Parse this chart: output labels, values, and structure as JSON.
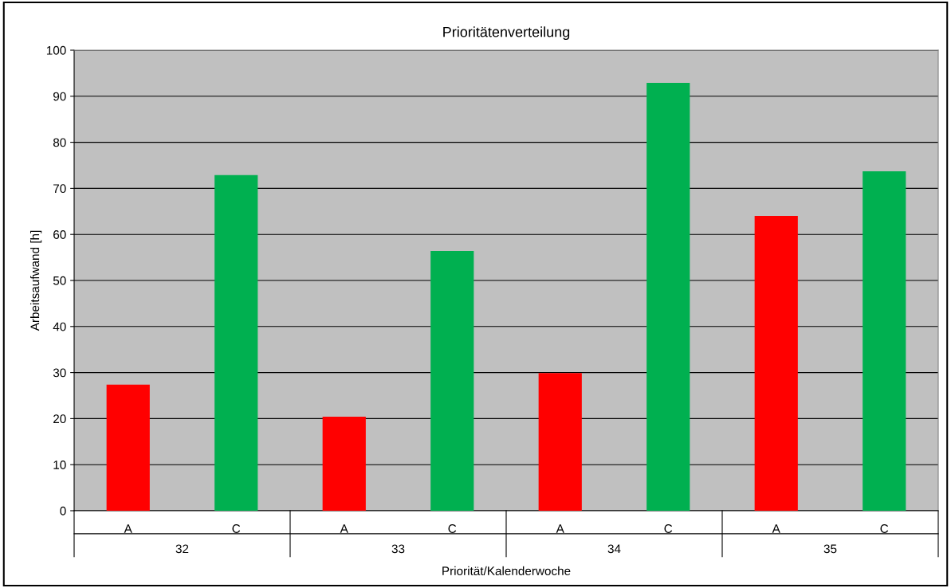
{
  "chart_data": {
    "type": "bar",
    "title": "Prioritätenverteilung",
    "xlabel": "Priorität/Kalenderwoche",
    "ylabel": "Arbeitsaufwand [h]",
    "categories": [
      "A",
      "C",
      "A",
      "C",
      "A",
      "C",
      "A",
      "C"
    ],
    "values": [
      27.4,
      72.9,
      20.4,
      56.4,
      29.9,
      92.9,
      64.0,
      73.7
    ],
    "colors": [
      "#ff0000",
      "#00b050",
      "#ff0000",
      "#00b050",
      "#ff0000",
      "#00b050",
      "#ff0000",
      "#00b050"
    ],
    "annotations": [
      "32",
      "33",
      "34",
      "35"
    ],
    "ylim": [
      0,
      100
    ],
    "yticks": [
      0,
      10,
      20,
      30,
      40,
      50,
      60,
      70,
      80,
      90,
      100
    ],
    "grid": "y",
    "legend": false
  }
}
